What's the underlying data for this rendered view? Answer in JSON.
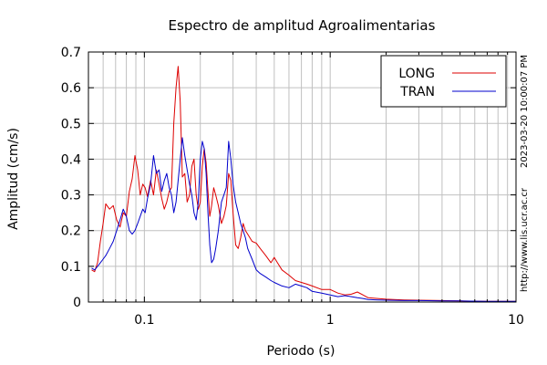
{
  "chart_data": {
    "type": "line",
    "title": "Espectro de amplitud Agroalimentarias",
    "xlabel": "Periodo (s)",
    "ylabel": "Amplitud (cm/s)",
    "x_scale": "log",
    "xlim": [
      0.05,
      10
    ],
    "ylim": [
      0,
      0.7
    ],
    "x_ticks": [
      {
        "value": 0.1,
        "label": "0.1"
      },
      {
        "value": 1,
        "label": "1"
      },
      {
        "value": 10,
        "label": "10"
      }
    ],
    "y_ticks": [
      {
        "value": 0,
        "label": "0"
      },
      {
        "value": 0.1,
        "label": "0.1"
      },
      {
        "value": 0.2,
        "label": "0.2"
      },
      {
        "value": 0.3,
        "label": "0.3"
      },
      {
        "value": 0.4,
        "label": "0.4"
      },
      {
        "value": 0.5,
        "label": "0.5"
      },
      {
        "value": 0.6,
        "label": "0.6"
      },
      {
        "value": 0.7,
        "label": "0.7"
      }
    ],
    "grid": true,
    "legend_position": "top-right",
    "series": [
      {
        "name": "LONG",
        "color": "#dd0000",
        "points": [
          [
            0.052,
            0.09
          ],
          [
            0.054,
            0.085
          ],
          [
            0.056,
            0.11
          ],
          [
            0.058,
            0.17
          ],
          [
            0.06,
            0.22
          ],
          [
            0.062,
            0.275
          ],
          [
            0.065,
            0.26
          ],
          [
            0.068,
            0.27
          ],
          [
            0.071,
            0.23
          ],
          [
            0.074,
            0.21
          ],
          [
            0.077,
            0.25
          ],
          [
            0.08,
            0.24
          ],
          [
            0.083,
            0.31
          ],
          [
            0.086,
            0.345
          ],
          [
            0.089,
            0.41
          ],
          [
            0.092,
            0.37
          ],
          [
            0.095,
            0.3
          ],
          [
            0.098,
            0.33
          ],
          [
            0.101,
            0.32
          ],
          [
            0.104,
            0.295
          ],
          [
            0.108,
            0.34
          ],
          [
            0.112,
            0.3
          ],
          [
            0.116,
            0.37
          ],
          [
            0.12,
            0.33
          ],
          [
            0.124,
            0.29
          ],
          [
            0.128,
            0.26
          ],
          [
            0.132,
            0.28
          ],
          [
            0.136,
            0.31
          ],
          [
            0.14,
            0.32
          ],
          [
            0.144,
            0.5
          ],
          [
            0.148,
            0.6
          ],
          [
            0.152,
            0.66
          ],
          [
            0.156,
            0.56
          ],
          [
            0.16,
            0.35
          ],
          [
            0.165,
            0.36
          ],
          [
            0.17,
            0.28
          ],
          [
            0.175,
            0.3
          ],
          [
            0.18,
            0.38
          ],
          [
            0.185,
            0.4
          ],
          [
            0.19,
            0.3
          ],
          [
            0.195,
            0.26
          ],
          [
            0.2,
            0.28
          ],
          [
            0.205,
            0.38
          ],
          [
            0.21,
            0.43
          ],
          [
            0.215,
            0.39
          ],
          [
            0.22,
            0.31
          ],
          [
            0.225,
            0.24
          ],
          [
            0.23,
            0.27
          ],
          [
            0.236,
            0.32
          ],
          [
            0.242,
            0.3
          ],
          [
            0.25,
            0.27
          ],
          [
            0.26,
            0.22
          ],
          [
            0.268,
            0.24
          ],
          [
            0.276,
            0.27
          ],
          [
            0.284,
            0.36
          ],
          [
            0.292,
            0.34
          ],
          [
            0.3,
            0.25
          ],
          [
            0.31,
            0.16
          ],
          [
            0.32,
            0.15
          ],
          [
            0.33,
            0.18
          ],
          [
            0.34,
            0.22
          ],
          [
            0.35,
            0.2
          ],
          [
            0.36,
            0.19
          ],
          [
            0.38,
            0.17
          ],
          [
            0.4,
            0.165
          ],
          [
            0.42,
            0.15
          ],
          [
            0.45,
            0.13
          ],
          [
            0.48,
            0.11
          ],
          [
            0.5,
            0.125
          ],
          [
            0.52,
            0.11
          ],
          [
            0.55,
            0.09
          ],
          [
            0.6,
            0.075
          ],
          [
            0.65,
            0.06
          ],
          [
            0.7,
            0.055
          ],
          [
            0.75,
            0.05
          ],
          [
            0.8,
            0.045
          ],
          [
            0.9,
            0.035
          ],
          [
            1.0,
            0.035
          ],
          [
            1.1,
            0.025
          ],
          [
            1.2,
            0.02
          ],
          [
            1.3,
            0.022
          ],
          [
            1.4,
            0.028
          ],
          [
            1.5,
            0.02
          ],
          [
            1.6,
            0.012
          ],
          [
            1.8,
            0.01
          ],
          [
            2.0,
            0.008
          ],
          [
            2.5,
            0.006
          ],
          [
            3.0,
            0.005
          ],
          [
            4.0,
            0.004
          ],
          [
            5.0,
            0.003
          ],
          [
            7.0,
            0.002
          ],
          [
            10.0,
            0.002
          ]
        ]
      },
      {
        "name": "TRAN",
        "color": "#0000cc",
        "points": [
          [
            0.052,
            0.095
          ],
          [
            0.054,
            0.09
          ],
          [
            0.056,
            0.1
          ],
          [
            0.058,
            0.11
          ],
          [
            0.06,
            0.12
          ],
          [
            0.062,
            0.13
          ],
          [
            0.065,
            0.15
          ],
          [
            0.068,
            0.17
          ],
          [
            0.071,
            0.2
          ],
          [
            0.074,
            0.23
          ],
          [
            0.077,
            0.26
          ],
          [
            0.08,
            0.24
          ],
          [
            0.083,
            0.2
          ],
          [
            0.086,
            0.19
          ],
          [
            0.089,
            0.2
          ],
          [
            0.092,
            0.22
          ],
          [
            0.095,
            0.24
          ],
          [
            0.098,
            0.26
          ],
          [
            0.101,
            0.25
          ],
          [
            0.104,
            0.29
          ],
          [
            0.108,
            0.33
          ],
          [
            0.112,
            0.41
          ],
          [
            0.116,
            0.36
          ],
          [
            0.12,
            0.37
          ],
          [
            0.124,
            0.31
          ],
          [
            0.128,
            0.34
          ],
          [
            0.132,
            0.36
          ],
          [
            0.136,
            0.32
          ],
          [
            0.14,
            0.3
          ],
          [
            0.144,
            0.25
          ],
          [
            0.148,
            0.28
          ],
          [
            0.152,
            0.34
          ],
          [
            0.156,
            0.4
          ],
          [
            0.16,
            0.46
          ],
          [
            0.165,
            0.41
          ],
          [
            0.17,
            0.37
          ],
          [
            0.175,
            0.33
          ],
          [
            0.18,
            0.3
          ],
          [
            0.185,
            0.25
          ],
          [
            0.19,
            0.23
          ],
          [
            0.195,
            0.28
          ],
          [
            0.2,
            0.4
          ],
          [
            0.205,
            0.45
          ],
          [
            0.21,
            0.43
          ],
          [
            0.215,
            0.36
          ],
          [
            0.22,
            0.25
          ],
          [
            0.225,
            0.16
          ],
          [
            0.23,
            0.11
          ],
          [
            0.236,
            0.12
          ],
          [
            0.242,
            0.15
          ],
          [
            0.25,
            0.2
          ],
          [
            0.26,
            0.28
          ],
          [
            0.268,
            0.3
          ],
          [
            0.276,
            0.32
          ],
          [
            0.284,
            0.45
          ],
          [
            0.292,
            0.4
          ],
          [
            0.3,
            0.33
          ],
          [
            0.31,
            0.28
          ],
          [
            0.32,
            0.25
          ],
          [
            0.33,
            0.22
          ],
          [
            0.34,
            0.2
          ],
          [
            0.35,
            0.18
          ],
          [
            0.36,
            0.15
          ],
          [
            0.38,
            0.12
          ],
          [
            0.4,
            0.09
          ],
          [
            0.42,
            0.08
          ],
          [
            0.45,
            0.07
          ],
          [
            0.48,
            0.06
          ],
          [
            0.5,
            0.055
          ],
          [
            0.55,
            0.045
          ],
          [
            0.6,
            0.04
          ],
          [
            0.65,
            0.05
          ],
          [
            0.7,
            0.045
          ],
          [
            0.75,
            0.04
          ],
          [
            0.8,
            0.03
          ],
          [
            0.9,
            0.025
          ],
          [
            1.0,
            0.02
          ],
          [
            1.1,
            0.015
          ],
          [
            1.2,
            0.018
          ],
          [
            1.3,
            0.015
          ],
          [
            1.4,
            0.012
          ],
          [
            1.5,
            0.01
          ],
          [
            1.6,
            0.007
          ],
          [
            1.8,
            0.006
          ],
          [
            2.0,
            0.005
          ],
          [
            2.5,
            0.004
          ],
          [
            3.0,
            0.004
          ],
          [
            4.0,
            0.003
          ],
          [
            5.0,
            0.003
          ],
          [
            7.0,
            0.002
          ],
          [
            10.0,
            0.002
          ]
        ]
      }
    ]
  },
  "side_labels": {
    "url": "http://www.lis.ucr.ac.cr",
    "timestamp": "2023-03-20 10:00:07 PM"
  }
}
